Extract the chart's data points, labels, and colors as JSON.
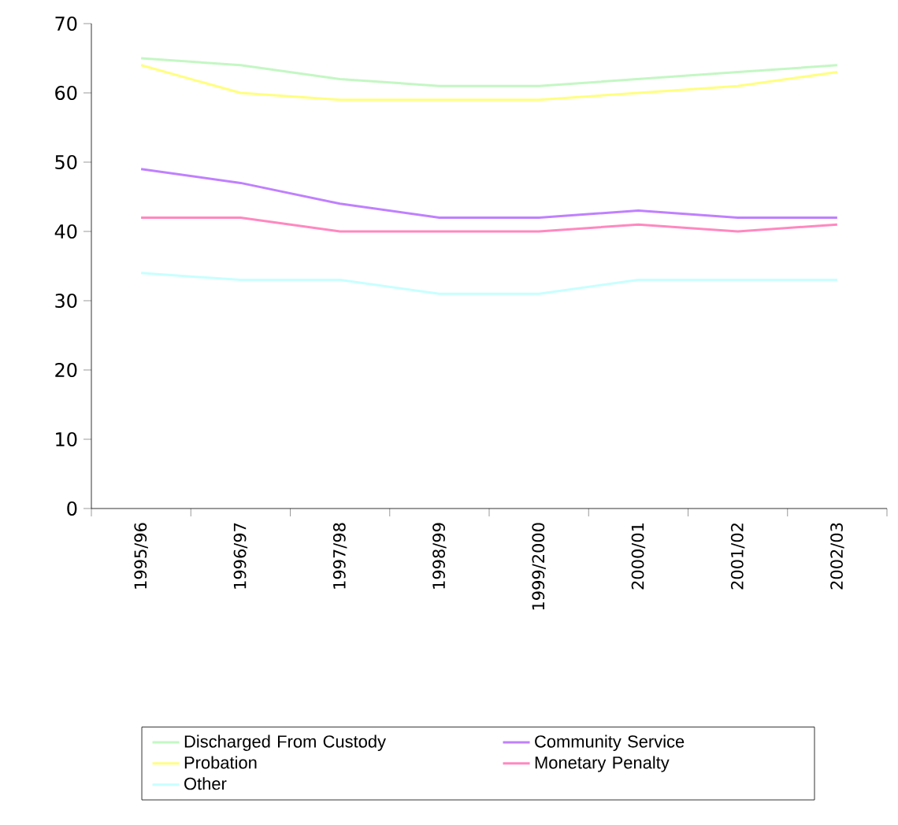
{
  "chart_data": {
    "type": "line",
    "categories": [
      "1995/96",
      "1996/97",
      "1997/98",
      "1998/99",
      "1999/2000",
      "2000/01",
      "2001/02",
      "2002/03"
    ],
    "ylim": [
      0,
      70
    ],
    "yticks": [
      0,
      10,
      20,
      30,
      40,
      50,
      60,
      70
    ],
    "grid": false,
    "legend": "bottom",
    "marker": "none",
    "line_style": "solid",
    "series": [
      {
        "name": "Discharged From Custody",
        "color": "#c4f7c4",
        "values": [
          65,
          64,
          62,
          61,
          61,
          62,
          63,
          64
        ]
      },
      {
        "name": "Community Service",
        "color": "#c080ff",
        "values": [
          49,
          47,
          44,
          42,
          42,
          43,
          42,
          42
        ]
      },
      {
        "name": "Probation",
        "color": "#ffff80",
        "values": [
          64,
          60,
          59,
          59,
          59,
          60,
          61,
          63
        ]
      },
      {
        "name": "Monetary Penalty",
        "color": "#ff88c0",
        "values": [
          42,
          42,
          40,
          40,
          40,
          41,
          40,
          41
        ]
      },
      {
        "name": "Other",
        "color": "#c8ffff",
        "values": [
          34,
          33,
          33,
          31,
          31,
          33,
          33,
          33
        ]
      }
    ]
  }
}
